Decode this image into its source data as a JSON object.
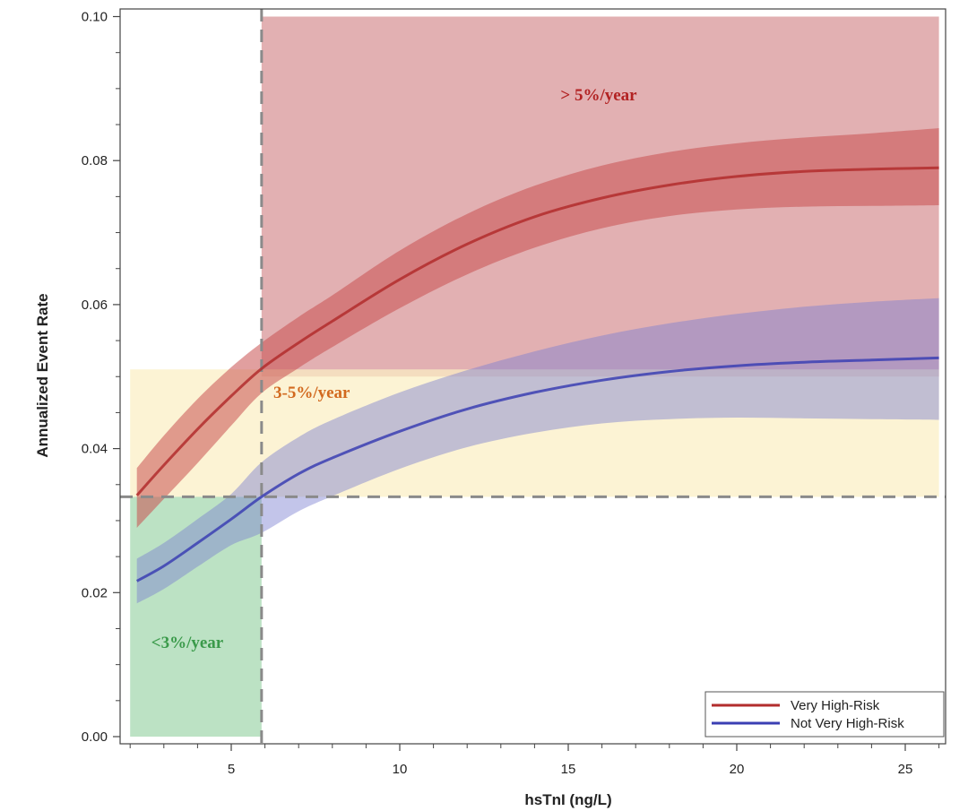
{
  "chart_data": {
    "type": "line",
    "xlabel": "hsTnI (ng/L)",
    "ylabel": "Annualized Event Rate",
    "xlim": [
      2,
      26
    ],
    "ylim": [
      0,
      0.1
    ],
    "x_ticks": [
      5,
      10,
      15,
      20,
      25
    ],
    "y_ticks": [
      0.0,
      0.02,
      0.04,
      0.06,
      0.08,
      0.1
    ],
    "y_tick_labels": [
      "0.00",
      "0.02",
      "0.04",
      "0.06",
      "0.08",
      "0.10"
    ],
    "grid": false,
    "legend_placement": "bottom-right",
    "zones": [
      {
        "label": "> 5%/year",
        "color": "#b22222",
        "fill": "#e0a9ab",
        "x_from": 5.9,
        "x_to": 26,
        "y_from": 0.05,
        "y_to": 0.1
      },
      {
        "label": "3-5%/year",
        "color": "#d2691e",
        "fill": "#fbeec4",
        "x_from": 2,
        "x_to": 26,
        "y_from": 0.0333,
        "y_to": 0.051
      },
      {
        "label": "<3%/year",
        "color": "#3a9a4a",
        "fill": "#b6dfbf",
        "x_from": 2,
        "x_to": 5.9,
        "y_from": 0,
        "y_to": 0.0333
      }
    ],
    "thresholds": {
      "x": 5.9,
      "y": 0.0333
    },
    "series": [
      {
        "name": "Very High-Risk",
        "color": "#b22d2d",
        "band_color": "#c85050",
        "x": [
          2.2,
          3,
          4,
          5,
          5.9,
          7,
          8,
          10,
          12,
          14,
          16,
          18,
          20,
          22,
          24,
          26
        ],
        "y": [
          0.0335,
          0.0377,
          0.0427,
          0.0473,
          0.0511,
          0.0547,
          0.0577,
          0.0635,
          0.0684,
          0.0722,
          0.0748,
          0.0766,
          0.0778,
          0.0785,
          0.0788,
          0.079
        ],
        "lower": [
          0.029,
          0.033,
          0.038,
          0.0432,
          0.0477,
          0.0512,
          0.0541,
          0.0595,
          0.0642,
          0.0679,
          0.0706,
          0.0723,
          0.0732,
          0.0736,
          0.0737,
          0.0738
        ],
        "upper": [
          0.0373,
          0.0418,
          0.0469,
          0.0513,
          0.0547,
          0.0583,
          0.0613,
          0.0675,
          0.0726,
          0.0765,
          0.0793,
          0.0812,
          0.0824,
          0.0832,
          0.0838,
          0.0845
        ]
      },
      {
        "name": "Not Very High-Risk",
        "color": "#3b3fb3",
        "band_color": "#7a7ed0",
        "x": [
          2.2,
          3,
          4,
          5,
          5.9,
          7,
          8,
          10,
          12,
          14,
          16,
          18,
          20,
          22,
          24,
          26
        ],
        "y": [
          0.0216,
          0.0237,
          0.0269,
          0.0302,
          0.0333,
          0.0365,
          0.0387,
          0.0424,
          0.0455,
          0.0478,
          0.0495,
          0.0507,
          0.0515,
          0.052,
          0.0523,
          0.0526
        ],
        "lower": [
          0.0185,
          0.0205,
          0.0236,
          0.0266,
          0.0283,
          0.0313,
          0.0334,
          0.0372,
          0.0402,
          0.0422,
          0.0435,
          0.0441,
          0.0443,
          0.0442,
          0.0441,
          0.044
        ],
        "upper": [
          0.0247,
          0.0269,
          0.0302,
          0.0337,
          0.0381,
          0.0416,
          0.044,
          0.0478,
          0.0509,
          0.0535,
          0.0557,
          0.0574,
          0.0587,
          0.0597,
          0.0604,
          0.0609
        ]
      }
    ]
  }
}
